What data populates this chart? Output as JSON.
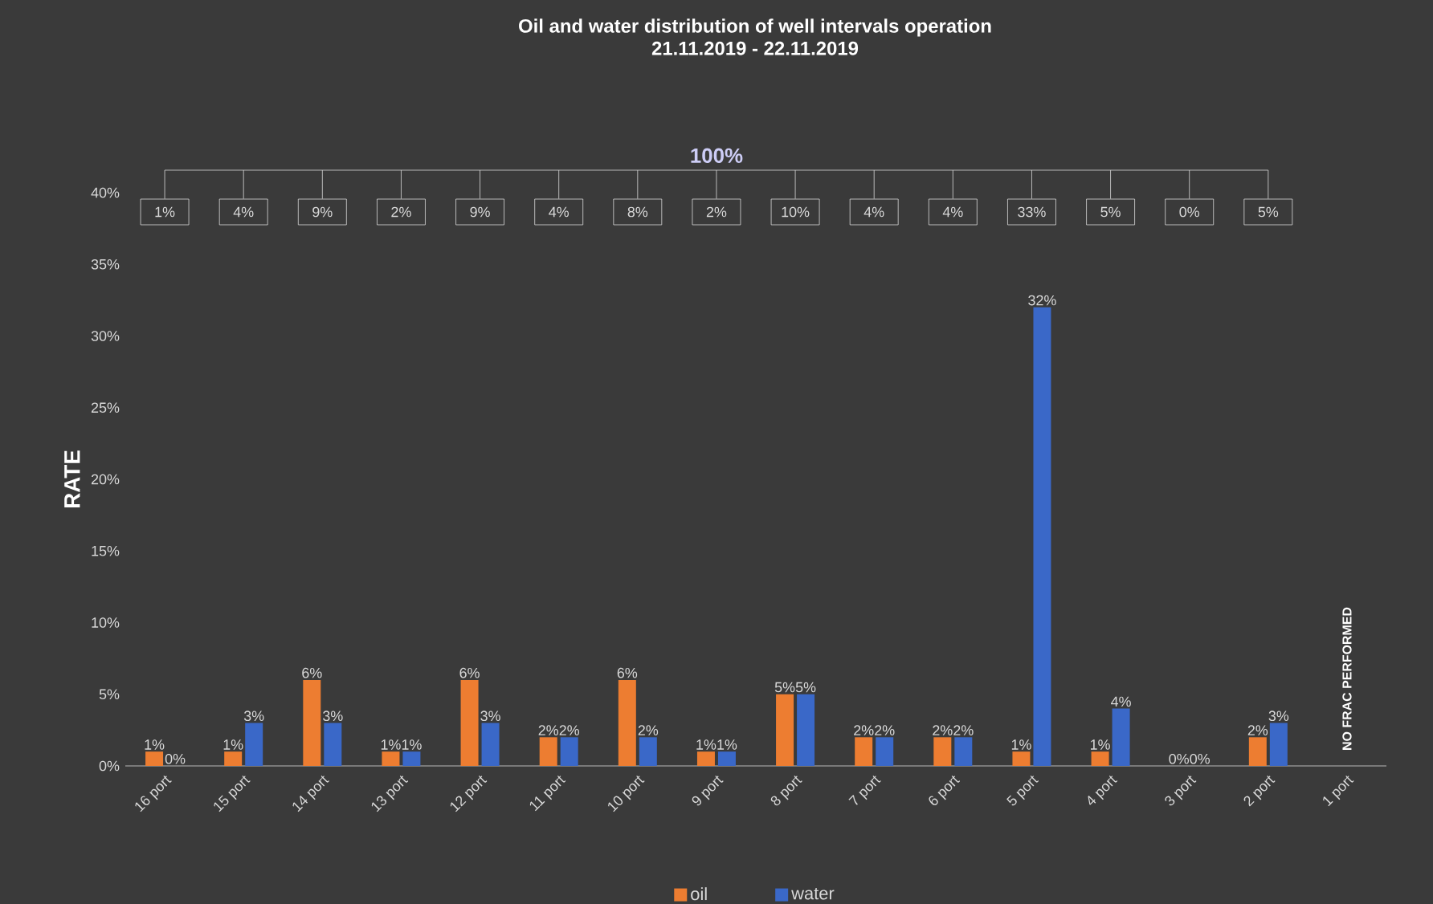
{
  "chart_data": {
    "type": "bar",
    "title": "Oil and water distribution of well intervals operation",
    "subtitle": "21.11.2019 - 22.11.2019",
    "ylabel": "RATE",
    "categories": [
      "16 port",
      "15 port",
      "14 port",
      "13 port",
      "12 port",
      "11 port",
      "10 port",
      "9 port",
      "8 port",
      "7 port",
      "6 port",
      "5 port",
      "4 port",
      "3 port",
      "2 port",
      "1 port"
    ],
    "series": [
      {
        "name": "oil",
        "color": "#ed7d31",
        "values": [
          1,
          1,
          6,
          1,
          6,
          2,
          6,
          1,
          5,
          2,
          2,
          1,
          1,
          0,
          2,
          null
        ],
        "value_labels": [
          "1%",
          "1%",
          "6%",
          "1%",
          "6%",
          "2%",
          "6%",
          "1%",
          "5%",
          "2%",
          "2%",
          "1%",
          "1%",
          "0%",
          "2%",
          null
        ]
      },
      {
        "name": "water",
        "color": "#3a68c8",
        "values": [
          0,
          3,
          3,
          1,
          3,
          2,
          2,
          1,
          5,
          2,
          2,
          32,
          4,
          0,
          3,
          null
        ],
        "value_labels": [
          "0%",
          "3%",
          "3%",
          "1%",
          "3%",
          "2%",
          "2%",
          "1%",
          "5%",
          "2%",
          "2%",
          "32%",
          "4%",
          "0%",
          "3%",
          null
        ]
      }
    ],
    "annotations": [
      "100%",
      "1%",
      "4%",
      "9%",
      "2%",
      "9%",
      "4%",
      "8%",
      "2%",
      "10%",
      "4%",
      "4%",
      "33%",
      "5%",
      "0%",
      "5%",
      "NO FRAC PERFORMED"
    ],
    "ylim": [
      0,
      40
    ],
    "yticks": [
      {
        "value": 0,
        "label": "0%"
      },
      {
        "value": 5,
        "label": "5%"
      },
      {
        "value": 10,
        "label": "10%"
      },
      {
        "value": 15,
        "label": "15%"
      },
      {
        "value": 20,
        "label": "20%"
      },
      {
        "value": 25,
        "label": "25%"
      },
      {
        "value": 30,
        "label": "30%"
      },
      {
        "value": 35,
        "label": "35%"
      },
      {
        "value": 40,
        "label": "40%"
      }
    ],
    "legend": "bottom",
    "grid": false
  }
}
